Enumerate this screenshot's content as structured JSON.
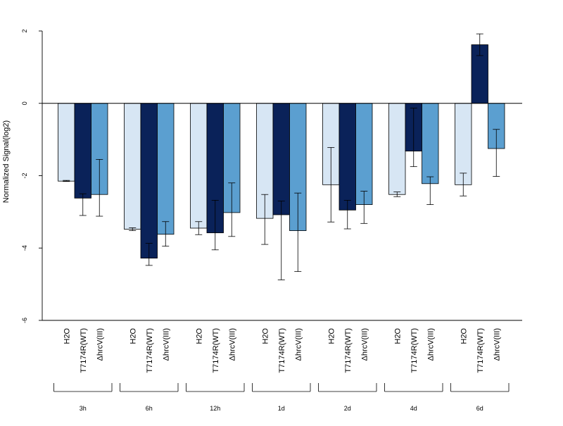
{
  "chart_data": {
    "type": "bar",
    "title": "",
    "xlabel": "",
    "ylabel": "Normalized Signal(log2)",
    "ylim": [
      -6,
      2
    ],
    "yticks": [
      2,
      0,
      -2,
      -4,
      -6
    ],
    "grid": false,
    "legend": "none",
    "zero_line": true,
    "groups": [
      "3h",
      "6h",
      "12h",
      "1d",
      "2d",
      "4d",
      "6d"
    ],
    "series": [
      {
        "label": "H2O",
        "color": "#d7e6f4",
        "values": [
          -2.15,
          -3.48,
          -3.45,
          -3.18,
          -2.25,
          -2.52,
          -2.25
        ],
        "err_low": [
          -2.16,
          -3.52,
          -3.63,
          -3.9,
          -3.28,
          -2.58,
          -2.56
        ],
        "err_high": [
          -2.13,
          -3.44,
          -3.27,
          -2.52,
          -1.22,
          -2.45,
          -1.93
        ]
      },
      {
        "label": "T7174R(WT)",
        "color": "#0a2259",
        "values": [
          -2.62,
          -4.28,
          -3.58,
          -3.08,
          -2.95,
          -1.32,
          1.62
        ],
        "err_low": [
          -3.1,
          -4.48,
          -4.05,
          -4.88,
          -3.47,
          -1.75,
          1.32
        ],
        "err_high": [
          -2.5,
          -3.87,
          -2.68,
          -2.7,
          -2.68,
          -0.13,
          1.92
        ]
      },
      {
        "label": "ΔhrcV(III)",
        "color": "#5b9fd0",
        "values": [
          -2.52,
          -3.62,
          -3.02,
          -3.52,
          -2.8,
          -2.22,
          -1.25
        ],
        "err_low": [
          -3.12,
          -3.95,
          -3.68,
          -4.65,
          -3.32,
          -2.8,
          -2.02
        ],
        "err_high": [
          -1.55,
          -3.27,
          -2.2,
          -2.48,
          -2.43,
          -2.03,
          -0.72
        ]
      }
    ]
  }
}
